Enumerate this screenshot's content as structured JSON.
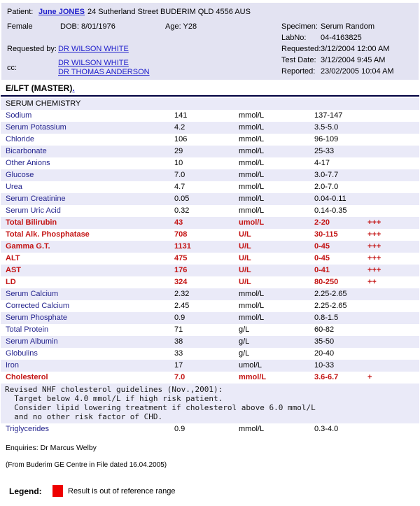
{
  "colors": {
    "panel": "#E3E3F2",
    "stripe": "#EAEAF8",
    "link_blue": "#2121CC",
    "test_name_blue": "#26268F",
    "abnormal_red": "#C41414",
    "legend_red": "#EE0000",
    "rule_navy": "#000040"
  },
  "header": {
    "patient_label": "Patient:",
    "patient_name": "June JONES",
    "patient_address": "24 Sutherland Street BUDERIM QLD 4556 AUS",
    "sex": "Female",
    "dob": "DOB: 8/01/1976",
    "age": "Age: Y28",
    "requested_by_label": "Requested by:",
    "requested_by": "DR WILSON WHITE",
    "cc_label": "cc:",
    "cc": [
      "DR WILSON WHITE",
      "DR THOMAS ANDERSON"
    ],
    "meta": [
      {
        "label": "Specimen:",
        "value": "Serum Random"
      },
      {
        "label": "LabNo:",
        "value": "04-4163825"
      },
      {
        "label": "Requested:",
        "value": "3/12/2004 12:00 AM"
      },
      {
        "label": "Test Date:",
        "value": "3/12/2004 9:45 AM"
      },
      {
        "label": "Reported:",
        "value": "23/02/2005 10:04 AM"
      }
    ]
  },
  "report": {
    "title": "E/LFT (MASTER)",
    "title_suffix": ".",
    "section": "SERUM CHEMISTRY"
  },
  "results": [
    {
      "name": "Sodium",
      "value": "141",
      "unit": "mmol/L",
      "range": "137-147",
      "flag": "",
      "abnormal": false
    },
    {
      "name": "Serum Potassium",
      "value": "4.2",
      "unit": "mmol/L",
      "range": "3.5-5.0",
      "flag": "",
      "abnormal": false
    },
    {
      "name": "Chloride",
      "value": "106",
      "unit": "mmol/L",
      "range": "96-109",
      "flag": "",
      "abnormal": false
    },
    {
      "name": "Bicarbonate",
      "value": "29",
      "unit": "mmol/L",
      "range": "25-33",
      "flag": "",
      "abnormal": false
    },
    {
      "name": "Other Anions",
      "value": "10",
      "unit": "mmol/L",
      "range": "4-17",
      "flag": "",
      "abnormal": false
    },
    {
      "name": "Glucose",
      "value": "7.0",
      "unit": "mmol/L",
      "range": "3.0-7.7",
      "flag": "",
      "abnormal": false
    },
    {
      "name": "Urea",
      "value": "4.7",
      "unit": "mmol/L",
      "range": "2.0-7.0",
      "flag": "",
      "abnormal": false
    },
    {
      "name": "Serum Creatinine",
      "value": "0.05",
      "unit": "mmol/L",
      "range": "0.04-0.11",
      "flag": "",
      "abnormal": false
    },
    {
      "name": "Serum Uric Acid",
      "value": "0.32",
      "unit": "mmol/L",
      "range": "0.14-0.35",
      "flag": "",
      "abnormal": false
    },
    {
      "name": "Total Bilirubin",
      "value": "43",
      "unit": "umol/L",
      "range": "2-20",
      "flag": "+++",
      "abnormal": true
    },
    {
      "name": "Total Alk. Phosphatase",
      "value": "708",
      "unit": "U/L",
      "range": "30-115",
      "flag": "+++",
      "abnormal": true
    },
    {
      "name": "Gamma G.T.",
      "value": "1131",
      "unit": "U/L",
      "range": "0-45",
      "flag": "+++",
      "abnormal": true
    },
    {
      "name": "ALT",
      "value": "475",
      "unit": "U/L",
      "range": "0-45",
      "flag": "+++",
      "abnormal": true
    },
    {
      "name": "AST",
      "value": "176",
      "unit": "U/L",
      "range": "0-41",
      "flag": "+++",
      "abnormal": true
    },
    {
      "name": "LD",
      "value": "324",
      "unit": "U/L",
      "range": "80-250",
      "flag": "++",
      "abnormal": true
    },
    {
      "name": "Serum Calcium",
      "value": "2.32",
      "unit": "mmol/L",
      "range": "2.25-2.65",
      "flag": "",
      "abnormal": false
    },
    {
      "name": "Corrected Calcium",
      "value": "2.45",
      "unit": "mmol/L",
      "range": "2.25-2.65",
      "flag": "",
      "abnormal": false
    },
    {
      "name": "Serum Phosphate",
      "value": "0.9",
      "unit": "mmol/L",
      "range": "0.8-1.5",
      "flag": "",
      "abnormal": false
    },
    {
      "name": "Total Protein",
      "value": "71",
      "unit": "g/L",
      "range": "60-82",
      "flag": "",
      "abnormal": false
    },
    {
      "name": "Serum Albumin",
      "value": "38",
      "unit": "g/L",
      "range": "35-50",
      "flag": "",
      "abnormal": false
    },
    {
      "name": "Globulins",
      "value": "33",
      "unit": "g/L",
      "range": "20-40",
      "flag": "",
      "abnormal": false
    },
    {
      "name": "Iron",
      "value": "17",
      "unit": "umol/L",
      "range": "10-33",
      "flag": "",
      "abnormal": false
    },
    {
      "name": "Cholesterol",
      "value": "7.0",
      "unit": "mmol/L",
      "range": "3.6-6.7",
      "flag": "+",
      "abnormal": true
    }
  ],
  "note": {
    "lines": [
      "Revised NHF cholesterol guidelines (Nov.,2001):",
      "  Target below 4.0 mmol/L if high risk patient.",
      "  Consider lipid lowering treatment if cholesterol above 6.0 mmol/L",
      "  and no other risk factor of CHD."
    ]
  },
  "results_after_note": [
    {
      "name": "Triglycerides",
      "value": "0.9",
      "unit": "mmol/L",
      "range": "0.3-4.0",
      "flag": "",
      "abnormal": false
    }
  ],
  "footer": {
    "enquiries": "Enquiries: Dr Marcus Welby",
    "source": "(From Buderim GE Centre in File  dated 16.04.2005)",
    "legend_label": "Legend:",
    "legend_text": "Result is out of reference range"
  }
}
